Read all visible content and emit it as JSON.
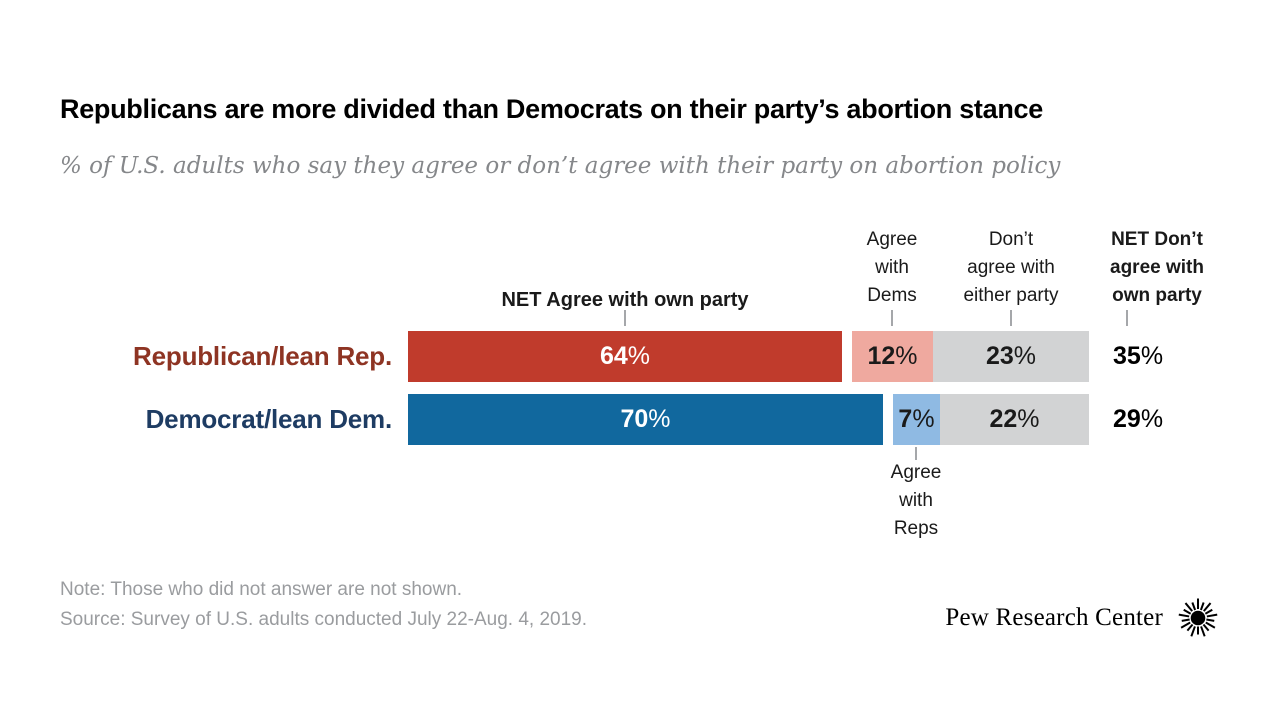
{
  "title": "Republicans are more divided than Democrats on their party’s abortion stance",
  "subtitle": "% of U.S. adults who say they agree or don’t agree with their party on abortion policy",
  "chart_data": {
    "type": "bar",
    "orientation": "horizontal",
    "stacked": true,
    "unit": "%",
    "xlim": [
      0,
      100
    ],
    "grid": false,
    "categories": [
      "Republican/lean Rep.",
      "Democrat/lean Dem."
    ],
    "column_headers": {
      "net_agree": "NET Agree with own party",
      "agree_with_dems": "Agree\nwith\nDems",
      "dont_agree_either": "Don’t\nagree with\neither party",
      "net_dont_agree": "NET Don’t\nagree with\nown party",
      "agree_with_reps": "Agree\nwith\nReps"
    },
    "rows": [
      {
        "label": "Republican/lean Rep.",
        "net_agree": 64,
        "agree_with_dems": 12,
        "dont_agree_either": 23,
        "net_dont_agree": 35
      },
      {
        "label": "Democrat/lean Dem.",
        "net_agree": 70,
        "agree_with_reps": 7,
        "dont_agree_either": 22,
        "net_dont_agree": 29
      }
    ]
  },
  "note": "Note: Those who did not answer are not shown.",
  "source": "Source: Survey of U.S. adults conducted July 22-Aug. 4, 2019.",
  "branding": {
    "logo_text": "Pew Research Center"
  },
  "colors": {
    "rep_bar": "#c03b2c",
    "rep_bar_light": "#efa99f",
    "dem_bar": "#11689e",
    "dem_bar_light": "#8fbae3",
    "neutral_bar": "#d2d3d4",
    "rep_label_text": "#8e3423",
    "dem_label_text": "#1e3c63",
    "value_text_light": "#ffffff",
    "value_text_dark": "#1a1a1a",
    "subtitle_text": "#85878a",
    "note_text": "#9a9c9f",
    "tick": "#a5a7aa"
  }
}
